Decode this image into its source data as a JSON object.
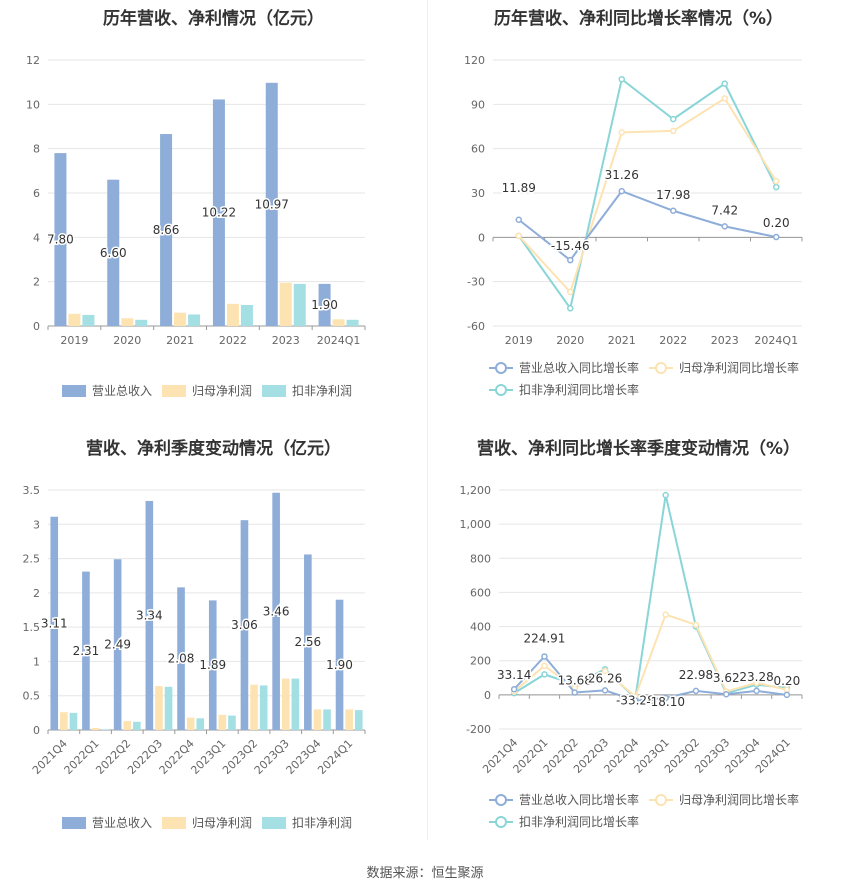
{
  "source_text": "数据来源：恒生聚源",
  "colors": {
    "revenue": "#8eadd8",
    "net_profit": "#fde3b2",
    "deducted": "#a3dfe3",
    "growth_revenue": "#8eadd8",
    "growth_net": "#fde3b2",
    "growth_deducted": "#89d5d8"
  },
  "chart_data": [
    {
      "type": "bar",
      "title": "历年营收、净利情况（亿元）",
      "categories": [
        "2019",
        "2020",
        "2021",
        "2022",
        "2023",
        "2024Q1"
      ],
      "ylim": [
        0,
        12
      ],
      "yticks": [
        0,
        2,
        4,
        6,
        8,
        10,
        12
      ],
      "series": [
        {
          "name": "营业总收入",
          "values": [
            7.8,
            6.6,
            8.66,
            10.22,
            10.97,
            1.9
          ],
          "labels": [
            "7.80",
            "6.60",
            "8.66",
            "10.22",
            "10.97",
            "1.90"
          ]
        },
        {
          "name": "归母净利润",
          "values": [
            0.55,
            0.35,
            0.6,
            1.0,
            1.95,
            0.3
          ]
        },
        {
          "name": "扣非净利润",
          "values": [
            0.5,
            0.28,
            0.52,
            0.95,
            1.9,
            0.28
          ]
        }
      ],
      "legend": "bottom"
    },
    {
      "type": "line",
      "title": "历年营收、净利同比增长率情况（%）",
      "categories": [
        "2019",
        "2020",
        "2021",
        "2022",
        "2023",
        "2024Q1"
      ],
      "ylim": [
        -60,
        120
      ],
      "yticks": [
        -60,
        -30,
        0,
        30,
        60,
        90,
        120
      ],
      "series": [
        {
          "name": "营业总收入同比增长率",
          "values": [
            11.89,
            -15.46,
            31.26,
            17.98,
            7.42,
            0.2
          ],
          "labels": [
            "11.89",
            "-15.46",
            "31.26",
            "17.98",
            "7.42",
            "0.20"
          ]
        },
        {
          "name": "归母净利润同比增长率",
          "values": [
            1,
            -37,
            71,
            72,
            94,
            38
          ]
        },
        {
          "name": "扣非净利润同比增长率",
          "values": [
            1,
            -48,
            107,
            80,
            104,
            34
          ]
        }
      ],
      "legend": "bottom"
    },
    {
      "type": "bar",
      "title": "营收、净利季度变动情况（亿元）",
      "categories": [
        "2021Q4",
        "2022Q1",
        "2022Q2",
        "2022Q3",
        "2022Q4",
        "2023Q1",
        "2023Q2",
        "2023Q3",
        "2023Q4",
        "2024Q1"
      ],
      "ylim": [
        0,
        3.5
      ],
      "yticks": [
        0,
        0.5,
        1,
        1.5,
        2,
        2.5,
        3,
        3.5
      ],
      "ytick_labels": [
        "0",
        "0.5",
        "1",
        "1.5",
        "2",
        "2.5",
        "3",
        "3.5"
      ],
      "series": [
        {
          "name": "营业总收入",
          "values": [
            3.11,
            2.31,
            2.49,
            3.34,
            2.08,
            1.89,
            3.06,
            3.46,
            2.56,
            1.9
          ],
          "labels": [
            "3.11",
            "2.31",
            "2.49",
            "3.34",
            "2.08",
            "1.89",
            "3.06",
            "3.46",
            "2.56",
            "1.90"
          ]
        },
        {
          "name": "归母净利润",
          "values": [
            0.26,
            0.03,
            0.13,
            0.64,
            0.18,
            0.22,
            0.66,
            0.75,
            0.3,
            0.3
          ]
        },
        {
          "name": "扣非净利润",
          "values": [
            0.25,
            0.01,
            0.12,
            0.63,
            0.17,
            0.21,
            0.65,
            0.75,
            0.3,
            0.29
          ]
        }
      ],
      "legend": "bottom"
    },
    {
      "type": "line",
      "title": "营收、净利同比增长率季度变动情况（%）",
      "categories": [
        "2021Q4",
        "2022Q1",
        "2022Q2",
        "2022Q3",
        "2022Q4",
        "2023Q1",
        "2023Q2",
        "2023Q3",
        "2023Q4",
        "2024Q1"
      ],
      "ylim": [
        -200,
        1200
      ],
      "yticks": [
        -200,
        0,
        200,
        400,
        600,
        800,
        1000,
        1200
      ],
      "ytick_labels": [
        "-200",
        "0",
        "200",
        "400",
        "600",
        "800",
        "1,000",
        "1,200"
      ],
      "series": [
        {
          "name": "营业总收入同比增长率",
          "values": [
            33.14,
            224.91,
            13.68,
            26.26,
            -33.28,
            -18.1,
            22.98,
            3.62,
            23.28,
            0.2
          ],
          "labels": [
            "33.14",
            "224.91",
            "13.68",
            "26.26",
            "-33.28",
            "-18.10",
            "22.98",
            "3.62",
            "23.28",
            "0.20"
          ]
        },
        {
          "name": "归母净利润同比增长率",
          "values": [
            20,
            170,
            40,
            140,
            -10,
            470,
            410,
            20,
            70,
            30
          ]
        },
        {
          "name": "扣非净利润同比增长率",
          "values": [
            10,
            120,
            60,
            150,
            -20,
            1170,
            400,
            10,
            60,
            40
          ]
        }
      ],
      "legend": "bottom"
    }
  ]
}
